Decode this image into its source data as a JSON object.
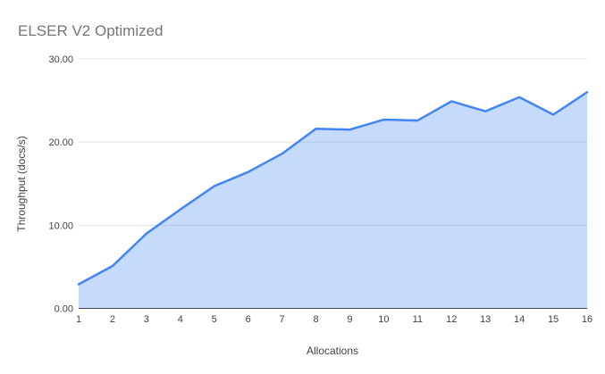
{
  "chart_data": {
    "type": "area",
    "title": "ELSER V2 Optimized",
    "xlabel": "Allocations",
    "ylabel": "Throughput (docs/s)",
    "x_labels": [
      "1",
      "2",
      "3",
      "4",
      "5",
      "6",
      "7",
      "8",
      "9",
      "10",
      "11",
      "12",
      "13",
      "14",
      "15",
      "16"
    ],
    "values": [
      2.9,
      5.1,
      9.0,
      11.9,
      14.7,
      16.4,
      18.6,
      21.6,
      21.5,
      22.7,
      22.6,
      24.9,
      23.7,
      25.4,
      23.3,
      26.0
    ],
    "ylim": [
      0,
      30
    ],
    "yticks": {
      "values": [
        0,
        10,
        20,
        30
      ],
      "labels": [
        "0.00",
        "10.00",
        "20.00",
        "30.00"
      ]
    },
    "grid": "horizontal",
    "legend": "none",
    "colors": {
      "line": "#4285f4",
      "area_fill": "#4285f4",
      "area_opacity": 0.3,
      "grid": "#e3e3e3",
      "baseline": "#424242",
      "title_text": "#757575",
      "axis_text": "#424242"
    }
  }
}
